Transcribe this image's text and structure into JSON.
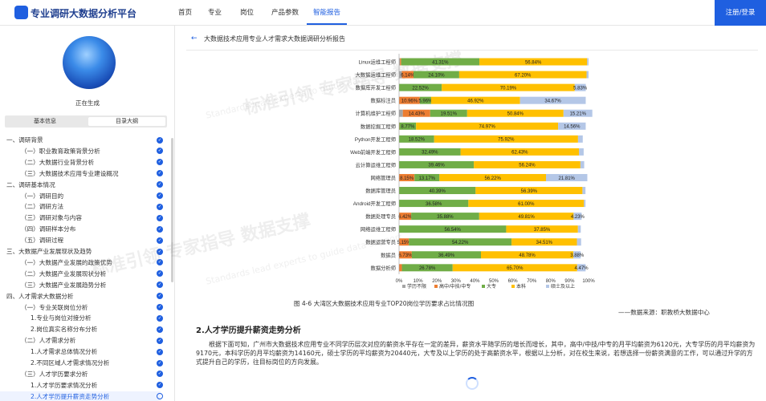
{
  "header": {
    "brand": "专业调研大数据分析平台",
    "nav": [
      "首页",
      "专业",
      "岗位",
      "产品参数",
      "智能报告"
    ],
    "login": "注册/登录"
  },
  "sidebar": {
    "status": "正在生成",
    "tabs": [
      "基本信息",
      "目录大纲"
    ],
    "toc": [
      "一、调研背景",
      "（一）职业教育政策背景分析",
      "（二）大数据行业背景分析",
      "（三）大数据技术应用专业建设概况",
      "二、调研基本情况",
      "（一）调研目的",
      "（二）调研方法",
      "（三）调研对象与内容",
      "（四）调研样本分布",
      "（五）调研过程",
      "三、大数据产业发展现状及趋势",
      "（一）大数据产业发展的政策优势",
      "（二）大数据产业发展现状分析",
      "（三）大数据产业发展趋势分析",
      "四、人才需求大数据分析",
      "（一）专业关联岗位分析",
      "1.专业与岗位对接分析",
      "2.岗位真实名称分布分析",
      "（二）人才需求分析",
      "1.人才需求总体情况分析",
      "2.不同区域人才需求情况分析",
      "（三）人才学历要求分析",
      "1.人才学历要求情况分析",
      "2.人才学历提升薪资走势分析"
    ]
  },
  "report": {
    "back": "←",
    "title": "大数据技术应用专业人才需求大数据调研分析报告",
    "figure_caption": "图 4-6 大湾区大数据技术应用专业TOP20岗位学历要求占比情况图",
    "source": "——数据来源：职教桥大数据中心",
    "section_title": "2.人才学历提升薪资走势分析",
    "paragraph": "根据下面可知，广州市大数据技术应用专业不同学历层次对应的薪资水平存在一定的差异，薪资水平随学历的增长而增长，其中，高中/中技/中专的月平均薪资为6120元，大专学历的月平均薪资为9170元，本科学历的月平均薪资为14160元，硕士学历的平均薪资为20440元，大专及以上学历的处于高薪资水平，根据以上分析，对在校生来说，若想选择一份薪资满意的工作，可以通过升学的方式提升自己的学历，往目标岗位的方向发展。"
  },
  "watermark": {
    "big": [
      "标准引领 专家指导 数据支撑",
      "标准引领 专家指导 数据支撑"
    ],
    "small": [
      "Standards lead experts to guide data support",
      "Standards lead experts to guide data support"
    ]
  },
  "colors": {
    "primary": "#1f5fe0",
    "series": [
      "#a5a5a5",
      "#ed7d31",
      "#70ad47",
      "#ffc000",
      "#b4c7e7"
    ]
  },
  "chart_data": {
    "type": "bar",
    "orientation": "horizontal",
    "stacked": true,
    "categories": [
      "Linux运维工程师",
      "大数据运维工程师",
      "数据库开发工程师",
      "数据标注员",
      "计算机维护工程师",
      "数据挖掘工程师",
      "Python开发工程师",
      "Web前端开发工程师",
      "云计算运维工程师",
      "网络管理员",
      "数据库管理员",
      "Android开发工程师",
      "数据处理专员",
      "网络运维工程师",
      "数据运营专员",
      "数据员",
      "数据分析师"
    ],
    "series": [
      {
        "name": "学历不限",
        "values": [
          0.5,
          1.5,
          0,
          0,
          2.0,
          0,
          0,
          0,
          0,
          0,
          0,
          0,
          0,
          0,
          0,
          0,
          0
        ]
      },
      {
        "name": "高中/中技/中专",
        "values": [
          0.6,
          6.14,
          0,
          10.96,
          14.43,
          0.2,
          0,
          0,
          0,
          8.15,
          0,
          0,
          6.42,
          0,
          5.15,
          6.73,
          1.5
        ]
      },
      {
        "name": "大专",
        "values": [
          41.31,
          24.1,
          22.52,
          5.96,
          19.51,
          8.77,
          18.52,
          32.49,
          39.46,
          13.17,
          40.39,
          36.58,
          35.88,
          56.54,
          54.22,
          36.49,
          26.78
        ]
      },
      {
        "name": "本科",
        "values": [
          56.84,
          67.2,
          70.19,
          46.92,
          50.84,
          74.97,
          75.92,
          62.43,
          56.24,
          56.22,
          56.39,
          61.0,
          49.81,
          37.85,
          34.51,
          48.78,
          65.7
        ]
      },
      {
        "name": "硕士及以上",
        "values": [
          0.75,
          1.06,
          5.83,
          34.67,
          15.21,
          14.56,
          2.5,
          2.5,
          2.0,
          21.81,
          1.6,
          0.8,
          4.23,
          1.5,
          2.2,
          3.88,
          4.47
        ]
      }
    ],
    "labels": [
      [
        "",
        "",
        "41.31%",
        "56.84%",
        ""
      ],
      [
        "",
        "6.14%",
        "24.10%",
        "67.20%",
        ""
      ],
      [
        "",
        "",
        "22.52%",
        "70.19%",
        "5.83%"
      ],
      [
        "",
        "10.96%",
        "5.96%",
        "46.92%",
        "34.67%"
      ],
      [
        "",
        "14.43%",
        "19.51%",
        "50.84%",
        "15.21%"
      ],
      [
        "",
        "",
        "8.77%",
        "74.97%",
        "14.56%"
      ],
      [
        "",
        "",
        "18.52%",
        "75.92%",
        ""
      ],
      [
        "",
        "",
        "32.49%",
        "62.43%",
        ""
      ],
      [
        "",
        "",
        "39.46%",
        "56.24%",
        ""
      ],
      [
        "",
        "8.15%",
        "13.17%",
        "56.22%",
        "21.81%"
      ],
      [
        "",
        "",
        "40.39%",
        "56.39%",
        ""
      ],
      [
        "",
        "",
        "36.58%",
        "61.00%",
        ""
      ],
      [
        "",
        "6.42%",
        "35.88%",
        "49.81%",
        "4.23%"
      ],
      [
        "",
        "",
        "56.54%",
        "37.85%",
        ""
      ],
      [
        "",
        "5.15%",
        "54.22%",
        "34.51%",
        ""
      ],
      [
        "",
        "6.73%",
        "36.49%",
        "48.78%",
        "3.88%"
      ],
      [
        "",
        "",
        "26.78%",
        "65.70%",
        "4.47%"
      ]
    ],
    "xticks": [
      "0%",
      "10%",
      "20%",
      "30%",
      "40%",
      "50%",
      "60%",
      "70%",
      "80%",
      "90%",
      "100%"
    ],
    "xlim": [
      0,
      100
    ],
    "legend_position": "bottom"
  }
}
